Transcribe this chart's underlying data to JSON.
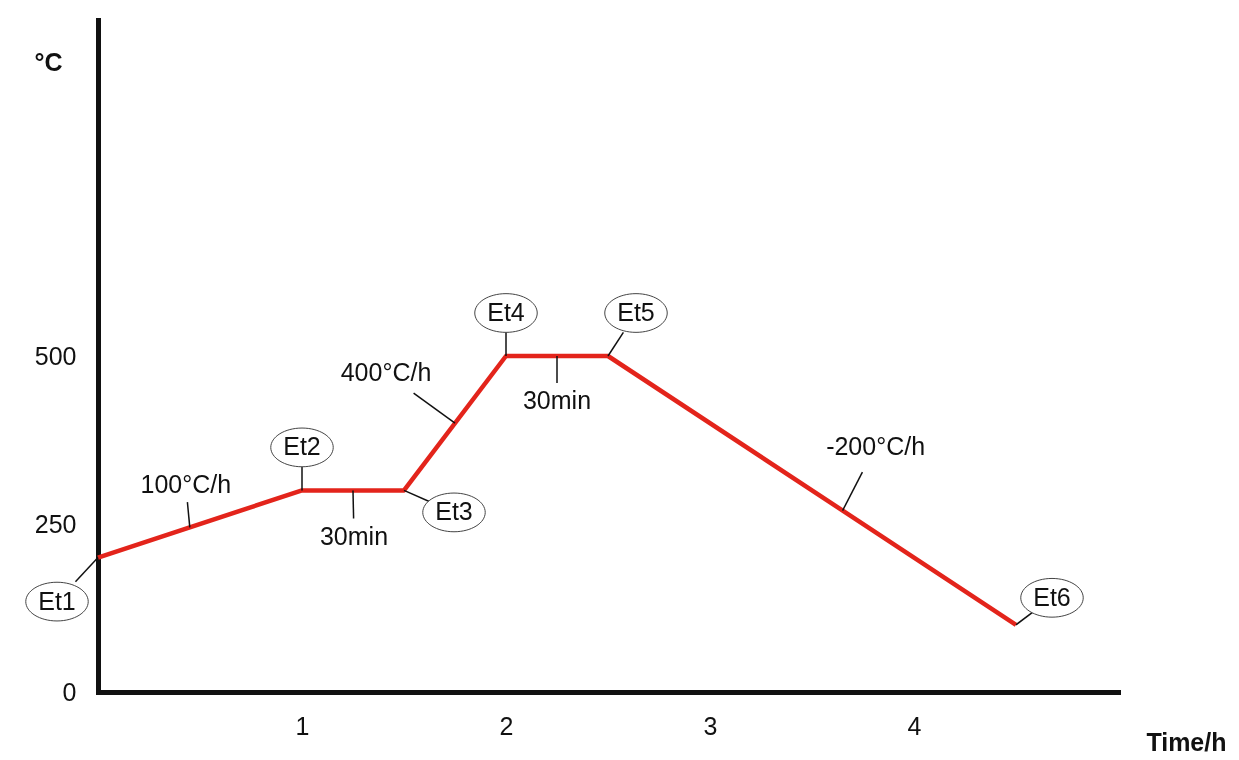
{
  "chart_data": {
    "type": "line",
    "xlabel": "Time/h",
    "ylabel": "°C",
    "x": [
      0,
      1,
      1.5,
      2,
      2.5,
      4.5
    ],
    "series": [
      {
        "color": "#e3241b",
        "values": [
          200,
          300,
          300,
          500,
          500,
          100
        ]
      }
    ],
    "xlim": [
      0,
      5
    ],
    "ylim": [
      0,
      1000
    ],
    "xticks": [
      1,
      2,
      3,
      4
    ],
    "yticks": [
      0,
      250,
      500
    ],
    "grid": false,
    "marker": "none",
    "line_style": "solid",
    "annotations": [
      {
        "text": "Et1",
        "x": 0,
        "y": 200
      },
      {
        "text": "Et2",
        "x": 1,
        "y": 300
      },
      {
        "text": "Et3",
        "x": 1.5,
        "y": 300
      },
      {
        "text": "Et4",
        "x": 2,
        "y": 500
      },
      {
        "text": "Et5",
        "x": 2.5,
        "y": 500
      },
      {
        "text": "Et6",
        "x": 4.5,
        "y": 100
      },
      {
        "text": "100°C/h",
        "x": 0.45,
        "y": 245
      },
      {
        "text": "30min",
        "x": 1.25,
        "y": 300
      },
      {
        "text": "400°C/h",
        "x": 1.75,
        "y": 400
      },
      {
        "text": "30min",
        "x": 2.25,
        "y": 500
      },
      {
        "text": "-200°C/h",
        "x": 3.65,
        "y": 270
      }
    ]
  }
}
